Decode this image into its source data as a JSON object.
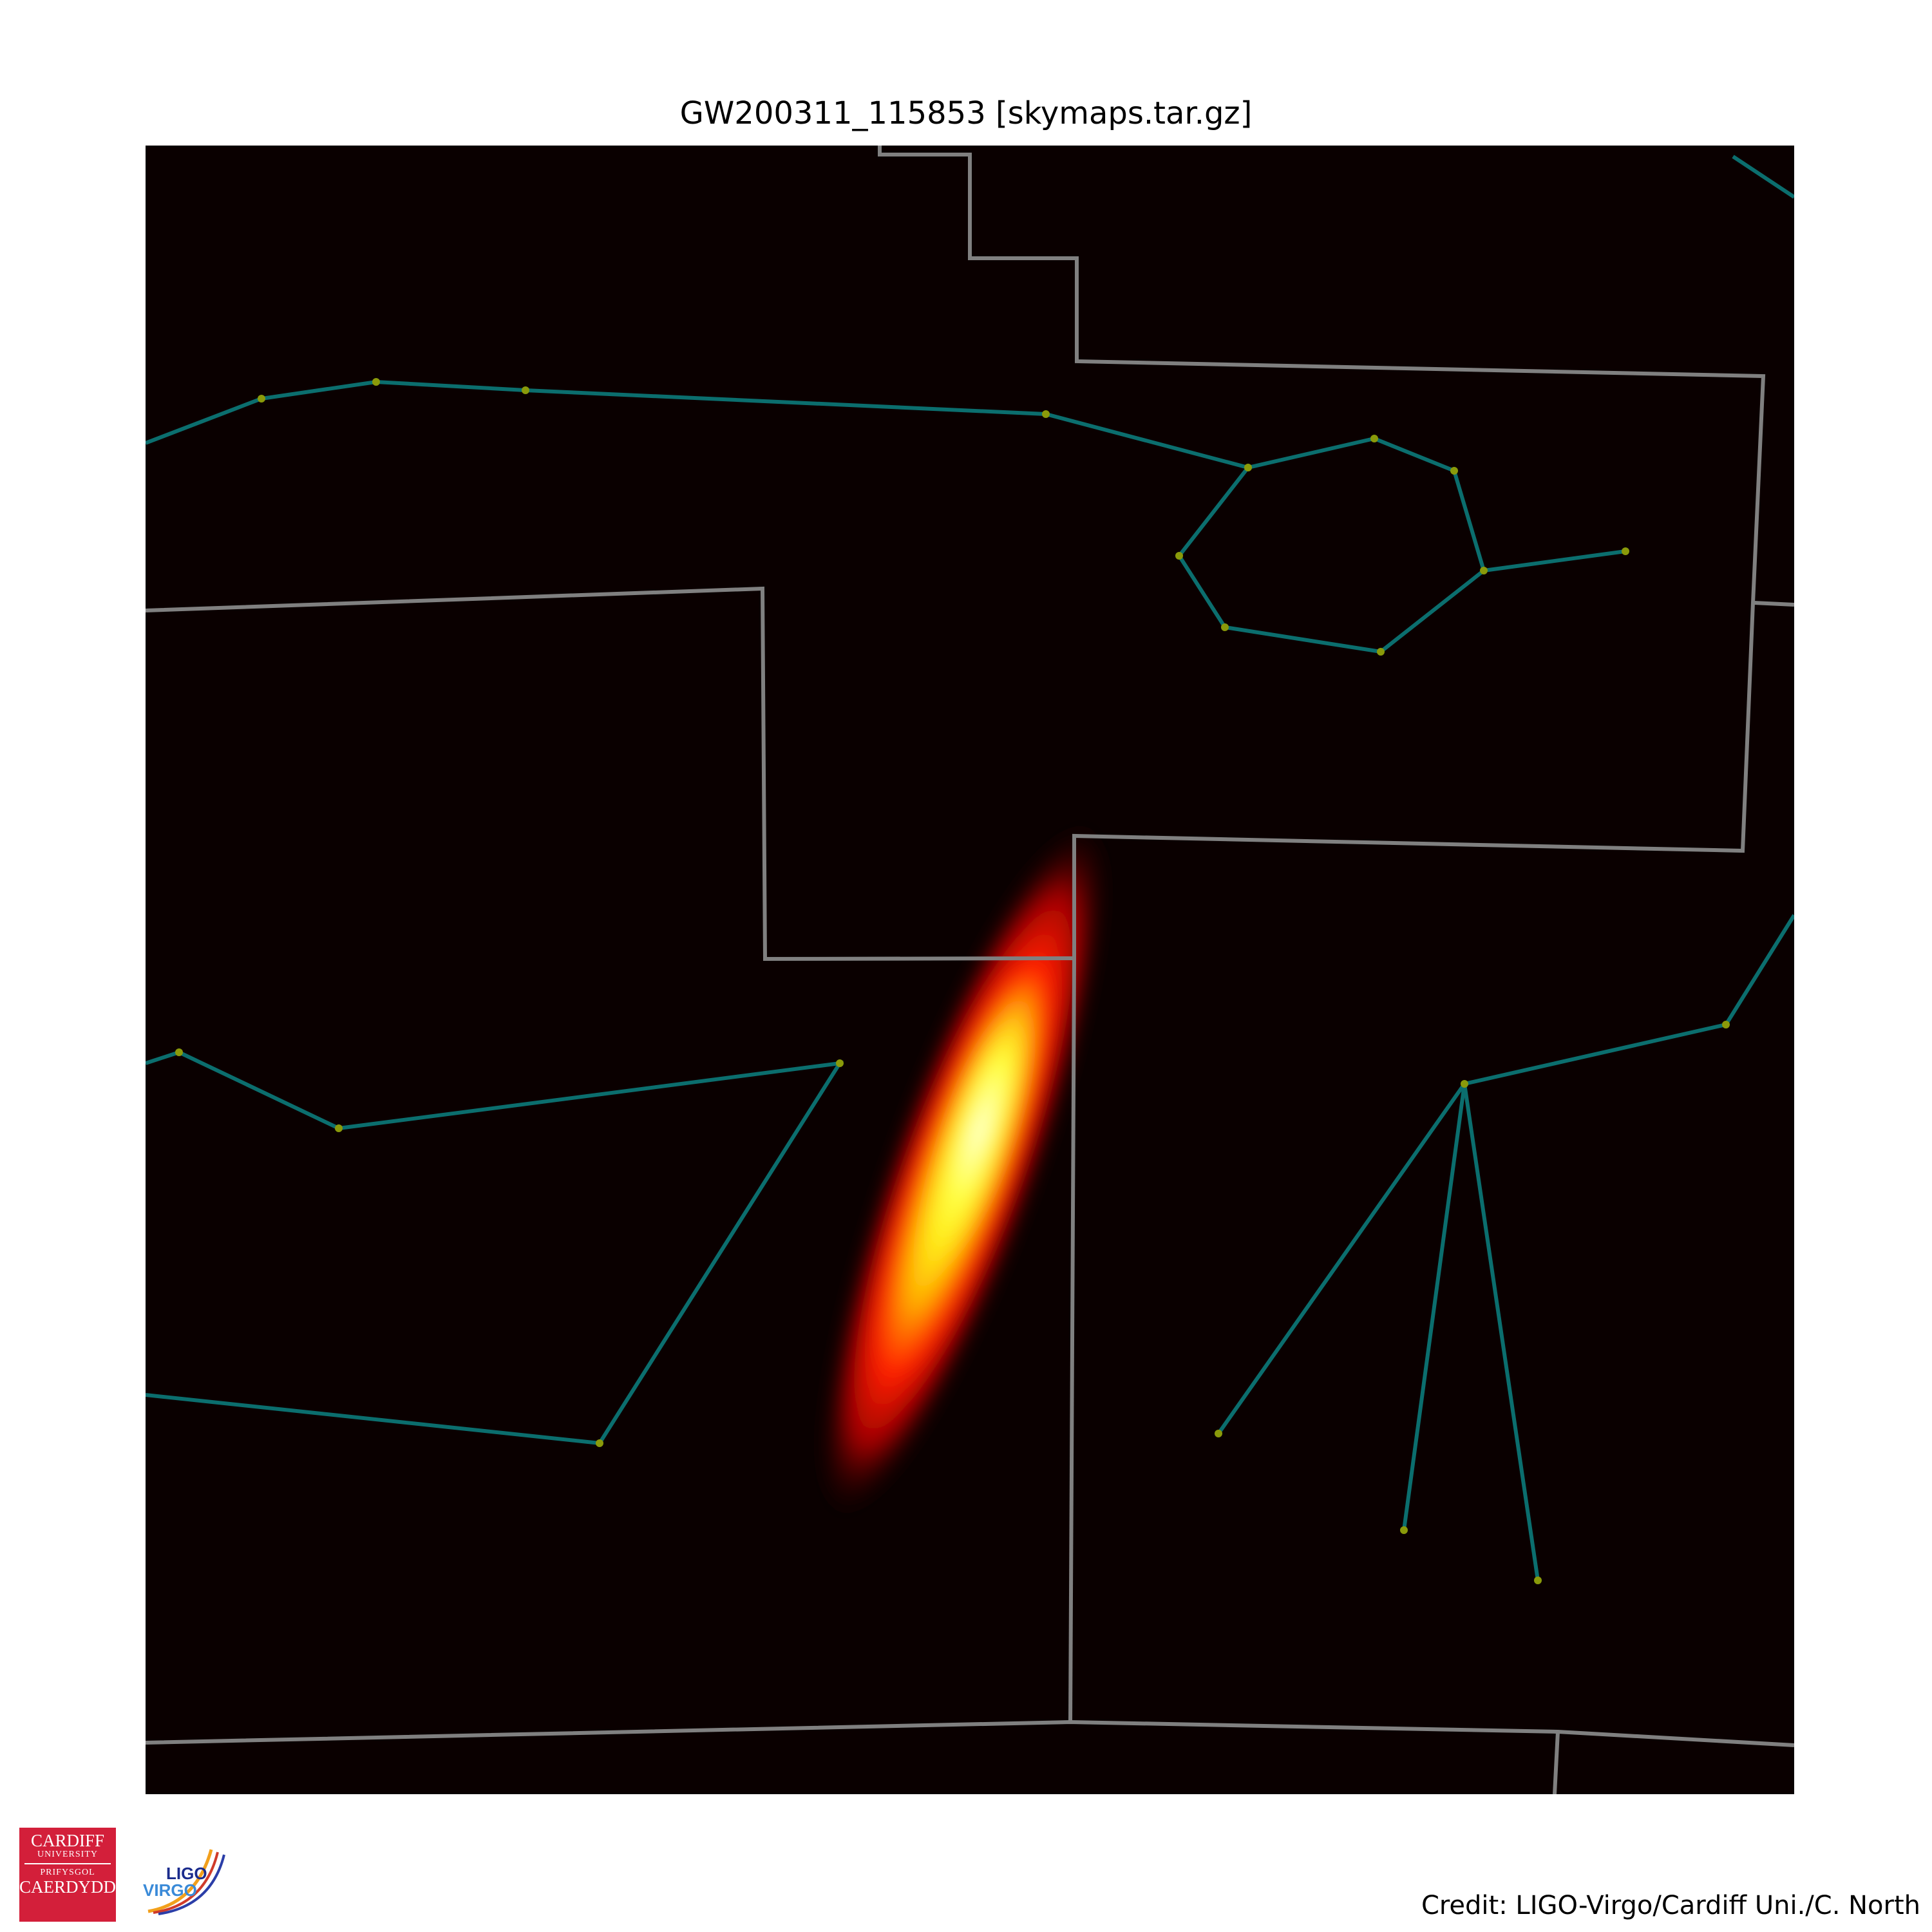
{
  "title": "GW200311_115853 [skymaps.tar.gz]",
  "credit": "Credit: LIGO-Virgo/Cardiff Uni./C. North",
  "logos": {
    "cardiff": [
      "CARDIFF",
      "UNIVERSITY",
      "PRIFYSGOL",
      "CAERDYDD"
    ],
    "ligo": "LIGO",
    "virgo": "VIRGO"
  },
  "colors": {
    "sky_background": "#0a0000",
    "constellation_lines": "#0b6e6e",
    "star_markers": "#8a9a0a",
    "boundary_lines": "#808080",
    "probability_peak": "#ffff66"
  }
}
